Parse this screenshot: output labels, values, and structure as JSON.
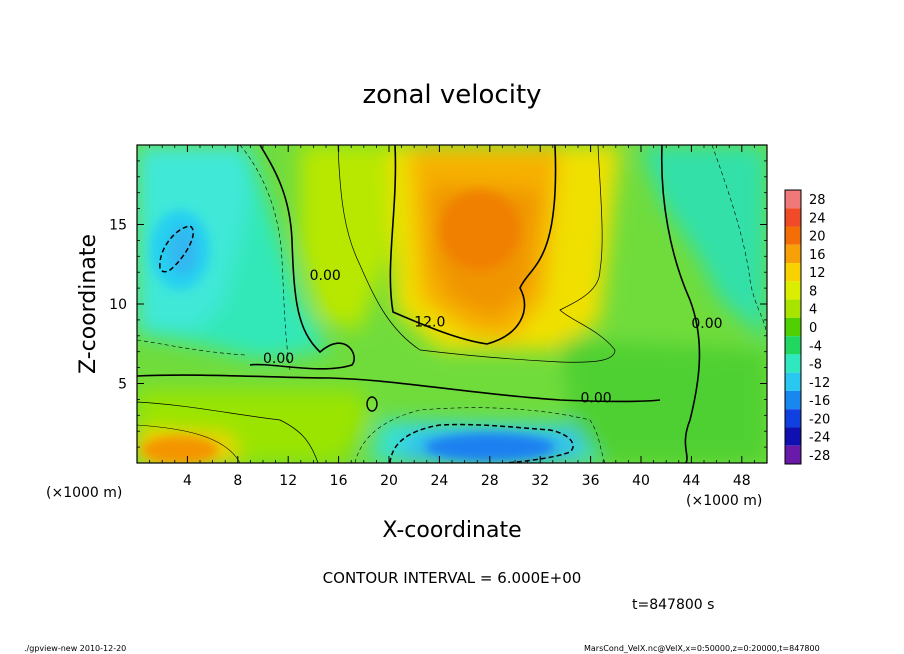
{
  "chart_data": {
    "type": "heatmap",
    "title": "zonal velocity",
    "xlabel": "X-coordinate",
    "ylabel": "Z-coordinate",
    "x_unit_note": "(×1000 m)",
    "y_unit_note": "(×1000 m)",
    "xlim": [
      0,
      50
    ],
    "ylim": [
      0,
      20
    ],
    "x_ticks": [
      4,
      8,
      12,
      16,
      20,
      24,
      28,
      32,
      36,
      40,
      44,
      48
    ],
    "y_ticks": [
      5,
      10,
      15
    ],
    "colorbar_ticks": [
      28,
      24,
      20,
      16,
      12,
      8,
      4,
      0,
      -4,
      -8,
      -12,
      -16,
      -20,
      -24,
      -28
    ],
    "colorbar_colors": [
      "#f07878",
      "#f04a28",
      "#f46e08",
      "#f8a008",
      "#f8d200",
      "#dcee00",
      "#a8e400",
      "#50d000",
      "#20d860",
      "#30e8c0",
      "#28c8f0",
      "#1888f0",
      "#1040e0",
      "#1010b0",
      "#6a1aa8"
    ],
    "contour_labels": [
      {
        "text": "0.00",
        "x": 13.7,
        "z": 11.5
      },
      {
        "text": "12.0",
        "x": 22.0,
        "z": 8.6
      },
      {
        "text": "0.00",
        "x": 10.0,
        "z": 6.3
      },
      {
        "text": "0.00",
        "x": 35.2,
        "z": 3.8
      },
      {
        "text": "0.00",
        "x": 44.0,
        "z": 8.5
      }
    ],
    "grid": false,
    "legend": "colorbar right"
  },
  "contour_interval": "CONTOUR INTERVAL = 6.000E+00",
  "time_label": "t=847800 s",
  "footer_left": "./gpview-new  2010-12-20",
  "footer_right": "MarsCond_VelX.nc@VelX,x=0:50000,z=0:20000,t=847800"
}
